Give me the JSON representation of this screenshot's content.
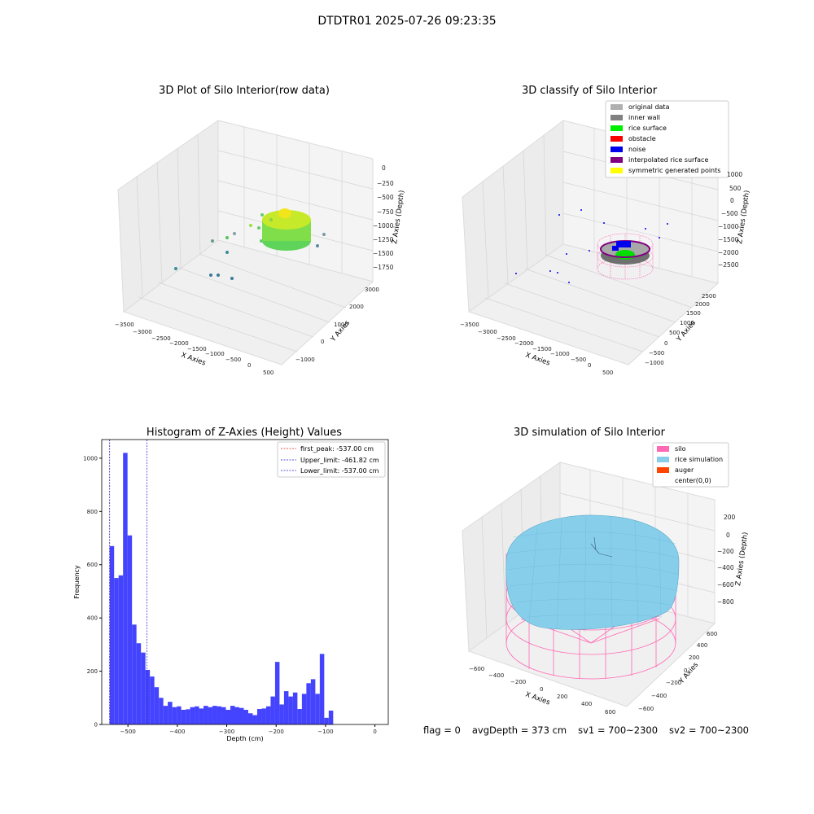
{
  "suptitle": "DTDTR01 2025-07-26 09:23:35",
  "footer": {
    "flag": "flag = 0",
    "avg_depth": "avgDepth = 373 cm",
    "sv1": "sv1 = 700~2300",
    "sv2": "sv2 = 700~2300"
  },
  "colors": {
    "hist_bar": "#4444ff",
    "first_peak": "#e02020",
    "upper_limit": "#2020cc",
    "lower_limit": "#2020cc",
    "silo": "#ff69b4",
    "rice_sim": "#87ceeb",
    "auger": "#ff4500",
    "noise": "#0000ee",
    "rice_surface": "#00ee00",
    "interpolated": "#800080"
  },
  "chart_data": [
    {
      "type": "scatter",
      "subtype": "3d",
      "title": "3D Plot of Silo Interior(row data)",
      "xlabel": "X Axies",
      "ylabel": "Y Axies",
      "zlabel": "Z Axies (Depth)",
      "x_ticks": [
        "−3500",
        "−3000",
        "−2500",
        "−2000",
        "−1500",
        "−1000",
        "−500",
        "0",
        "500"
      ],
      "y_ticks": [
        "−1000",
        "0",
        "1000",
        "2000",
        "3000"
      ],
      "z_ticks": [
        "0",
        "−250",
        "−500",
        "−750",
        "−1000",
        "−1250",
        "−1500",
        "−1750"
      ]
    },
    {
      "type": "scatter",
      "subtype": "3d",
      "title": "3D classify of Silo Interior",
      "xlabel": "X Axies",
      "ylabel": "Y Axies",
      "zlabel": "Z Axies (Depth)",
      "x_ticks": [
        "−3500",
        "−3000",
        "−2500",
        "−2000",
        "−1500",
        "−1000",
        "−500",
        "0",
        "500"
      ],
      "y_ticks": [
        "−1000",
        "−500",
        "0",
        "500",
        "1000",
        "1500",
        "2000",
        "2500"
      ],
      "z_ticks": [
        "1000",
        "500",
        "0",
        "−500",
        "−1000",
        "−1500",
        "−2000",
        "−2500"
      ],
      "legend": [
        {
          "label": "original data",
          "color": "#b0b0b0"
        },
        {
          "label": "inner wall",
          "color": "#808080"
        },
        {
          "label": "rice surface",
          "color": "#00ee00"
        },
        {
          "label": "obstacle",
          "color": "#ff0000"
        },
        {
          "label": "noise",
          "color": "#0000ee"
        },
        {
          "label": "interpolated rice surface",
          "color": "#800080"
        },
        {
          "label": "symmetric generated points",
          "color": "#ffff00"
        }
      ],
      "legend_position": "top-right"
    },
    {
      "type": "bar",
      "subtype": "histogram",
      "title": "Histogram of Z-Axies (Height) Values",
      "xlabel": "Depth (cm)",
      "ylabel": "Frequency",
      "xlim": [
        -553,
        27
      ],
      "ylim": [
        0,
        1070
      ],
      "x_ticks": [
        -500,
        -400,
        -300,
        -200,
        -100,
        0
      ],
      "y_ticks": [
        0,
        200,
        400,
        600,
        800,
        1000
      ],
      "bin_start": -537,
      "bin_width": 9.05,
      "values": [
        670,
        550,
        560,
        1020,
        710,
        375,
        305,
        270,
        205,
        180,
        140,
        100,
        70,
        85,
        65,
        68,
        55,
        57,
        65,
        68,
        60,
        70,
        65,
        70,
        68,
        65,
        55,
        70,
        65,
        62,
        55,
        42,
        35,
        58,
        60,
        68,
        105,
        235,
        75,
        125,
        105,
        120,
        58,
        115,
        155,
        170,
        115,
        265,
        25,
        52
      ],
      "lines": [
        {
          "label": "first_peak: -537.00 cm",
          "x": -537.0,
          "style": "red-dashed"
        },
        {
          "label": "Upper_limit: -461.82 cm",
          "x": -461.82,
          "style": "blue-dashed"
        },
        {
          "label": "Lower_limit: -537.00 cm",
          "x": -537.0,
          "style": "blue-dashed"
        }
      ],
      "legend_position": "top-right"
    },
    {
      "type": "surface",
      "subtype": "3d",
      "title": "3D simulation of Silo Interior",
      "xlabel": "X Axies",
      "ylabel": "Y Axies",
      "zlabel": "Z Axies (Depth)",
      "x_ticks": [
        "−600",
        "−400",
        "−200",
        "0",
        "200",
        "400",
        "600"
      ],
      "y_ticks": [
        "−600",
        "−400",
        "−200",
        "0",
        "200",
        "400",
        "600"
      ],
      "z_ticks": [
        "200",
        "0",
        "−200",
        "−400",
        "−600",
        "−800"
      ],
      "legend": [
        {
          "label": "silo",
          "color": "#ff69b4"
        },
        {
          "label": "rice simulation",
          "color": "#87ceeb"
        },
        {
          "label": "auger",
          "color": "#ff4500"
        },
        {
          "label": "center(0,0)",
          "color": ""
        }
      ],
      "legend_position": "top-right"
    }
  ]
}
